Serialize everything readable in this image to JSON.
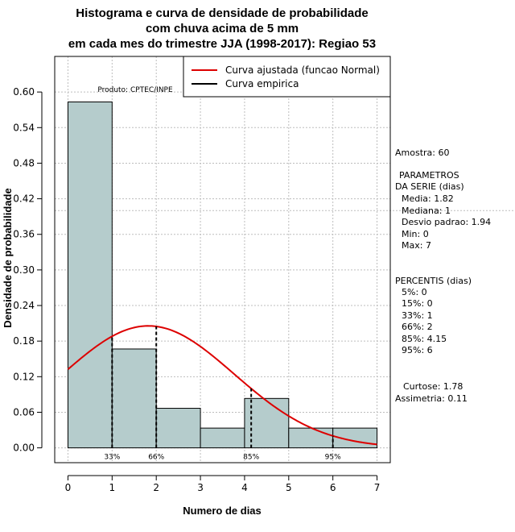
{
  "chart_data": {
    "type": "bar",
    "title_lines": [
      "Histograma e curva de densidade de probabilidade",
      "com chuva acima de 5 mm",
      "em cada mes do trimestre JJA (1998-2017): Regiao 53"
    ],
    "xlabel": "Numero de dias",
    "ylabel": "Densidade de probabilidade",
    "xlim": [
      -0.3,
      7.3
    ],
    "ylim": [
      -0.025,
      0.66
    ],
    "x_ticks": [
      0,
      1,
      2,
      3,
      4,
      5,
      6,
      7
    ],
    "y_ticks": [
      0.0,
      0.06,
      0.12,
      0.18,
      0.24,
      0.3,
      0.36,
      0.42,
      0.48,
      0.54,
      0.6
    ],
    "y_tick_labels": [
      "0.00",
      "0.06",
      "0.12",
      "0.18",
      "0.24",
      "0.30",
      "0.36",
      "0.42",
      "0.48",
      "0.54",
      "0.60"
    ],
    "bins": [
      {
        "from": 0,
        "to": 1,
        "density": 0.5833
      },
      {
        "from": 1,
        "to": 2,
        "density": 0.1667
      },
      {
        "from": 2,
        "to": 3,
        "density": 0.0667
      },
      {
        "from": 3,
        "to": 4,
        "density": 0.0333
      },
      {
        "from": 4,
        "to": 5,
        "density": 0.0833
      },
      {
        "from": 5,
        "to": 6,
        "density": 0.0333
      },
      {
        "from": 6,
        "to": 7,
        "density": 0.0333
      }
    ],
    "normal_fit": {
      "mean": 1.82,
      "sd": 1.94,
      "from": 0,
      "to": 7
    },
    "percentile_markers": [
      {
        "label": "33%",
        "x": 1
      },
      {
        "label": "66%",
        "x": 2
      },
      {
        "label": "85%",
        "x": 4.15
      },
      {
        "label": "95%",
        "x": 6
      }
    ],
    "legend": [
      {
        "label": "Curva ajustada (funcao Normal)",
        "color": "#dd0000"
      },
      {
        "label": "Curva empirica",
        "color": "#000000"
      }
    ],
    "product_label": "Produto: CPTEC/INPE",
    "colors": {
      "bar_fill": "#b5cccc",
      "fit_line": "#dd0000",
      "grid": "#bdbdbd"
    }
  },
  "stats": {
    "amostra": "Amostra: 60",
    "param_title_1": "PARAMETROS",
    "param_title_2": "DA SERIE (dias)",
    "media": "Media: 1.82",
    "mediana": "Mediana: 1",
    "desvio": "Desvio padrao: 1.94",
    "min": "Min: 0",
    "max": "Max: 7",
    "percentis_title": "PERCENTIS (dias)",
    "p5": "5%: 0",
    "p15": "15%: 0",
    "p33": "33%: 1",
    "p66": "66%: 2",
    "p85": "85%: 4.15",
    "p95": "95%: 6",
    "curtose": "Curtose: 1.78",
    "assimetria": "Assimetria: 0.11"
  }
}
